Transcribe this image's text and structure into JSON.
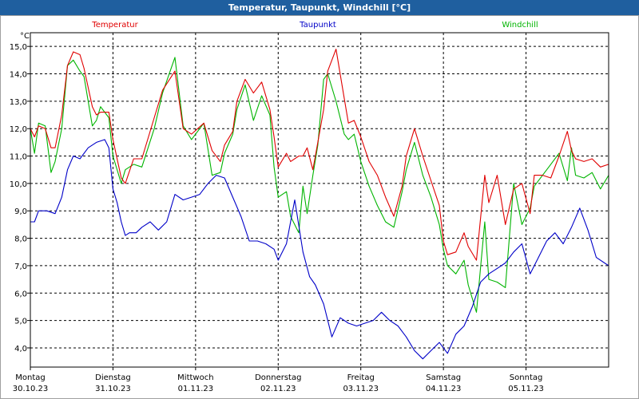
{
  "window": {
    "title": "Temperatur, Taupunkt, Windchill [°C]"
  },
  "chart_data": {
    "type": "line",
    "title": "Temperatur, Taupunkt, Windchill [°C]",
    "ylabel": "°C",
    "ylim": [
      3.3,
      15.5
    ],
    "xlim": [
      0,
      7
    ],
    "yticks": [
      "4,0",
      "5,0",
      "6,0",
      "7,0",
      "8,0",
      "9,0",
      "10,0",
      "11,0",
      "12,0",
      "13,0",
      "14,0",
      "15,0"
    ],
    "xticks": [
      {
        "day": "Montag",
        "date": "30.10.23"
      },
      {
        "day": "Dienstag",
        "date": "31.10.23"
      },
      {
        "day": "Mittwoch",
        "date": "01.11.23"
      },
      {
        "day": "Donnerstag",
        "date": "02.11.23"
      },
      {
        "day": "Freitag",
        "date": "03.11.23"
      },
      {
        "day": "Samstag",
        "date": "04.11.23"
      },
      {
        "day": "Sonntag",
        "date": "05.11.23"
      }
    ],
    "grid": true,
    "legend_placement": "top",
    "series": [
      {
        "name": "Temperatur",
        "color": "#e00000",
        "x": [
          0,
          0.05,
          0.1,
          0.18,
          0.25,
          0.3,
          0.38,
          0.45,
          0.52,
          0.6,
          0.65,
          0.75,
          0.8,
          0.85,
          0.95,
          1.0,
          1.1,
          1.15,
          1.25,
          1.35,
          1.5,
          1.6,
          1.75,
          1.85,
          1.95,
          2.1,
          2.2,
          2.3,
          2.35,
          2.45,
          2.5,
          2.6,
          2.7,
          2.8,
          2.9,
          2.95,
          3.0,
          3.1,
          3.15,
          3.25,
          3.3,
          3.35,
          3.42,
          3.48,
          3.55,
          3.6,
          3.7,
          3.8,
          3.85,
          3.92,
          4.0,
          4.1,
          4.2,
          4.3,
          4.4,
          4.5,
          4.55,
          4.65,
          4.75,
          4.85,
          4.95,
          5.0,
          5.05,
          5.15,
          5.25,
          5.3,
          5.4,
          5.5,
          5.55,
          5.65,
          5.75,
          5.85,
          5.95,
          6.05,
          6.1,
          6.2,
          6.3,
          6.4,
          6.5,
          6.55,
          6.6,
          6.7,
          6.8,
          6.9,
          7.0
        ],
        "values": [
          12.0,
          11.7,
          12.1,
          12.0,
          11.3,
          11.3,
          12.5,
          14.3,
          14.8,
          14.7,
          14.2,
          12.8,
          12.5,
          12.6,
          12.6,
          11.6,
          10.2,
          10.0,
          10.9,
          10.9,
          12.4,
          13.4,
          14.1,
          12.0,
          11.8,
          12.2,
          11.2,
          10.8,
          11.4,
          11.9,
          13.0,
          13.8,
          13.3,
          13.7,
          12.7,
          11.7,
          10.6,
          11.1,
          10.8,
          11.0,
          11.0,
          11.3,
          10.5,
          11.5,
          12.7,
          14.1,
          14.9,
          13.1,
          12.2,
          12.3,
          11.7,
          10.8,
          10.3,
          9.5,
          8.8,
          9.9,
          11.0,
          12.0,
          11.0,
          10.1,
          9.2,
          7.9,
          7.4,
          7.5,
          8.2,
          7.7,
          7.2,
          10.3,
          9.3,
          10.3,
          8.5,
          9.8,
          10.0,
          8.9,
          10.3,
          10.3,
          10.2,
          11.0,
          11.9,
          11.2,
          10.9,
          10.8,
          10.9,
          10.6,
          10.7
        ]
      },
      {
        "name": "Taupunkt",
        "color": "#0000c8",
        "x": [
          0,
          0.05,
          0.1,
          0.2,
          0.3,
          0.38,
          0.45,
          0.52,
          0.6,
          0.7,
          0.8,
          0.9,
          0.95,
          1.0,
          1.05,
          1.1,
          1.15,
          1.2,
          1.28,
          1.35,
          1.45,
          1.55,
          1.65,
          1.75,
          1.85,
          1.95,
          2.05,
          2.15,
          2.25,
          2.35,
          2.45,
          2.55,
          2.65,
          2.75,
          2.85,
          2.95,
          3.0,
          3.1,
          3.2,
          3.3,
          3.38,
          3.45,
          3.55,
          3.65,
          3.75,
          3.85,
          3.95,
          4.05,
          4.15,
          4.25,
          4.35,
          4.45,
          4.55,
          4.65,
          4.75,
          4.85,
          4.95,
          5.05,
          5.15,
          5.25,
          5.35,
          5.45,
          5.55,
          5.65,
          5.75,
          5.85,
          5.95,
          6.05,
          6.15,
          6.25,
          6.35,
          6.45,
          6.55,
          6.65,
          6.75,
          6.85,
          6.95,
          7.0
        ],
        "values": [
          8.6,
          8.6,
          9.0,
          9.0,
          8.9,
          9.5,
          10.5,
          11.0,
          10.9,
          11.3,
          11.5,
          11.6,
          11.3,
          9.8,
          9.3,
          8.6,
          8.1,
          8.2,
          8.2,
          8.4,
          8.6,
          8.3,
          8.6,
          9.6,
          9.4,
          9.5,
          9.6,
          10.0,
          10.3,
          10.2,
          9.5,
          8.8,
          7.9,
          7.9,
          7.8,
          7.6,
          7.2,
          7.8,
          9.4,
          7.5,
          6.6,
          6.3,
          5.6,
          4.4,
          5.1,
          4.9,
          4.8,
          4.9,
          5.0,
          5.3,
          5.0,
          4.8,
          4.4,
          3.9,
          3.6,
          3.9,
          4.2,
          3.8,
          4.5,
          4.8,
          5.5,
          6.4,
          6.7,
          6.9,
          7.1,
          7.5,
          7.8,
          6.7,
          7.3,
          7.9,
          8.2,
          7.8,
          8.4,
          9.1,
          8.3,
          7.3,
          7.1,
          7.0
        ]
      },
      {
        "name": "Windchill",
        "color": "#00b400",
        "x": [
          0,
          0.05,
          0.1,
          0.18,
          0.25,
          0.3,
          0.38,
          0.45,
          0.52,
          0.6,
          0.65,
          0.75,
          0.8,
          0.85,
          0.95,
          1.0,
          1.1,
          1.15,
          1.25,
          1.35,
          1.5,
          1.6,
          1.75,
          1.85,
          1.95,
          2.1,
          2.2,
          2.3,
          2.35,
          2.45,
          2.5,
          2.6,
          2.7,
          2.8,
          2.9,
          2.95,
          3.0,
          3.1,
          3.15,
          3.25,
          3.3,
          3.35,
          3.42,
          3.48,
          3.55,
          3.6,
          3.7,
          3.8,
          3.85,
          3.92,
          4.0,
          4.1,
          4.2,
          4.3,
          4.4,
          4.5,
          4.55,
          4.65,
          4.75,
          4.85,
          4.95,
          5.0,
          5.05,
          5.15,
          5.25,
          5.3,
          5.4,
          5.5,
          5.55,
          5.65,
          5.75,
          5.85,
          5.95,
          6.05,
          6.1,
          6.2,
          6.3,
          6.4,
          6.5,
          6.55,
          6.6,
          6.7,
          6.8,
          6.9,
          7.0
        ],
        "values": [
          12.0,
          11.1,
          12.2,
          12.1,
          10.4,
          10.8,
          12.0,
          14.3,
          14.5,
          14.1,
          13.9,
          12.1,
          12.3,
          12.8,
          12.4,
          11.0,
          10.0,
          10.5,
          10.7,
          10.6,
          12.0,
          13.3,
          14.6,
          12.1,
          11.6,
          12.2,
          10.3,
          10.4,
          11.1,
          11.8,
          12.7,
          13.6,
          12.3,
          13.2,
          12.5,
          10.6,
          9.5,
          9.7,
          8.8,
          8.2,
          9.9,
          8.9,
          10.3,
          11.4,
          13.8,
          14.0,
          13.0,
          11.8,
          11.6,
          11.8,
          10.8,
          9.9,
          9.2,
          8.6,
          8.4,
          9.7,
          10.5,
          11.5,
          10.3,
          9.5,
          8.5,
          7.6,
          7.0,
          6.7,
          7.2,
          6.3,
          5.3,
          8.6,
          6.5,
          6.4,
          6.2,
          10.0,
          8.5,
          9.1,
          9.9,
          10.3,
          10.7,
          11.1,
          10.1,
          11.3,
          10.3,
          10.2,
          10.4,
          9.8,
          10.3
        ]
      }
    ]
  }
}
